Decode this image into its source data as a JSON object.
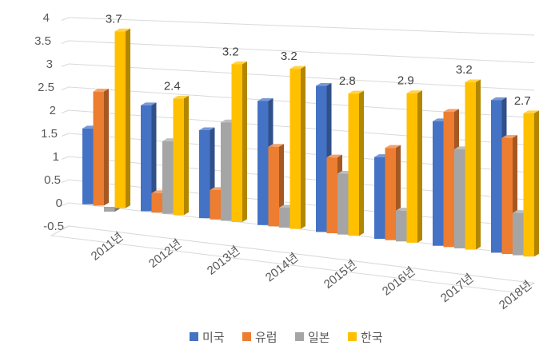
{
  "chart_data": {
    "type": "bar",
    "style": "3d-clustered-column",
    "title": "",
    "xlabel": "",
    "ylabel": "",
    "categories": [
      "2011년",
      "2012년",
      "2013년",
      "2014년",
      "2015년",
      "2016년",
      "2017년",
      "2018년"
    ],
    "series": [
      {
        "name": "미국",
        "color": "#4472C4",
        "values": [
          1.6,
          2.2,
          1.8,
          2.5,
          2.9,
          1.6,
          2.4,
          2.9
        ]
      },
      {
        "name": "유럽",
        "color": "#ED7D31",
        "values": [
          2.4,
          0.4,
          0.6,
          1.6,
          1.5,
          1.8,
          2.6,
          2.2
        ]
      },
      {
        "name": "일본",
        "color": "#A5A5A5",
        "values": [
          -0.1,
          1.5,
          2.0,
          0.4,
          1.2,
          0.6,
          1.9,
          0.8
        ]
      },
      {
        "name": "한국",
        "color": "#FFC000",
        "values": [
          3.7,
          2.4,
          3.2,
          3.2,
          2.8,
          2.9,
          3.2,
          2.7
        ]
      }
    ],
    "data_labels": {
      "series": "한국",
      "values": [
        "3.7",
        "2.4",
        "3.2",
        "3.2",
        "2.8",
        "2.9",
        "3.2",
        "2.7"
      ]
    },
    "y_axis": {
      "min": -0.5,
      "max": 4,
      "step": 0.5,
      "ticks": [
        "4",
        "3.5",
        "3",
        "2.5",
        "2",
        "1.5",
        "1",
        "0.5",
        "0",
        "-0.5"
      ]
    },
    "legend": {
      "position": "bottom",
      "items": [
        "미국",
        "유럽",
        "일본",
        "한국"
      ]
    },
    "grid": true,
    "colors": {
      "gridline": "#D9D9D9",
      "axis_text": "#595959",
      "data_label_text": "#404040",
      "background": "#FFFFFF"
    }
  }
}
